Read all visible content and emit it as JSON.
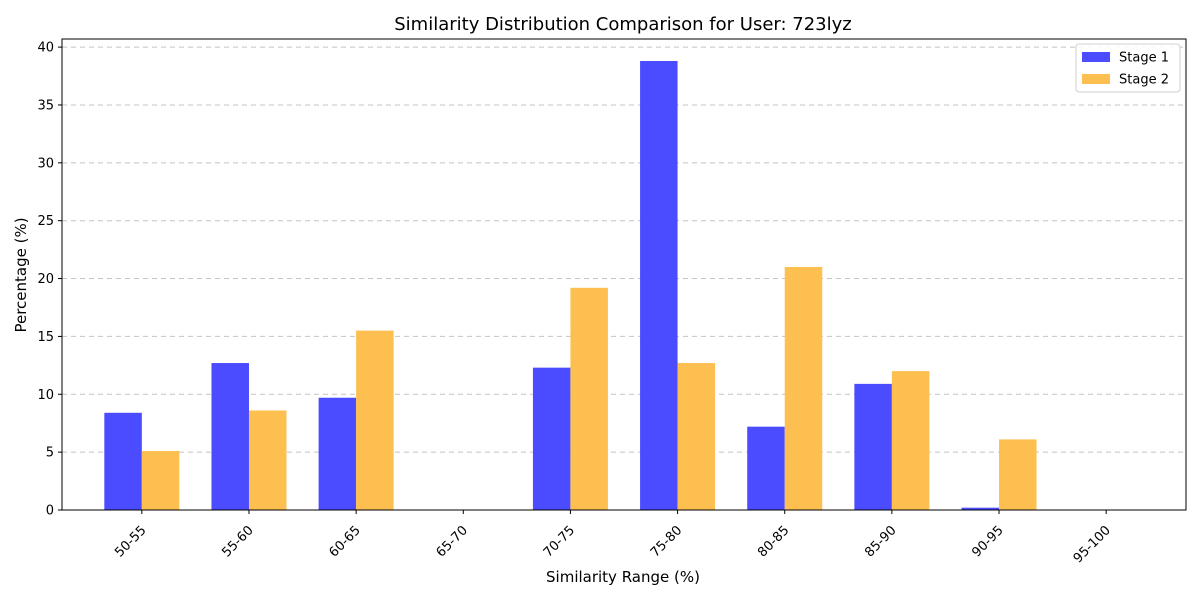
{
  "chart_data": {
    "type": "bar",
    "title": "Similarity Distribution Comparison for User: 723lyz",
    "xlabel": "Similarity Range (%)",
    "ylabel": "Percentage (%)",
    "categories": [
      "50-55",
      "55-60",
      "60-65",
      "65-70",
      "70-75",
      "75-80",
      "80-85",
      "85-90",
      "90-95",
      "95-100"
    ],
    "series": [
      {
        "name": "Stage 1",
        "color": "#4b4bff",
        "values": [
          8.4,
          12.7,
          9.7,
          0,
          12.3,
          38.8,
          7.2,
          10.9,
          0.2,
          0
        ]
      },
      {
        "name": "Stage 2",
        "color": "#fdbf4f",
        "values": [
          5.1,
          8.6,
          15.5,
          0,
          19.2,
          12.7,
          21.0,
          12.0,
          6.1,
          0
        ]
      }
    ],
    "ylim": [
      0,
      40.7
    ],
    "yticks": [
      0,
      5,
      10,
      15,
      20,
      25,
      30,
      35,
      40
    ],
    "grid": "y-dashed",
    "legend_position": "top-right"
  }
}
